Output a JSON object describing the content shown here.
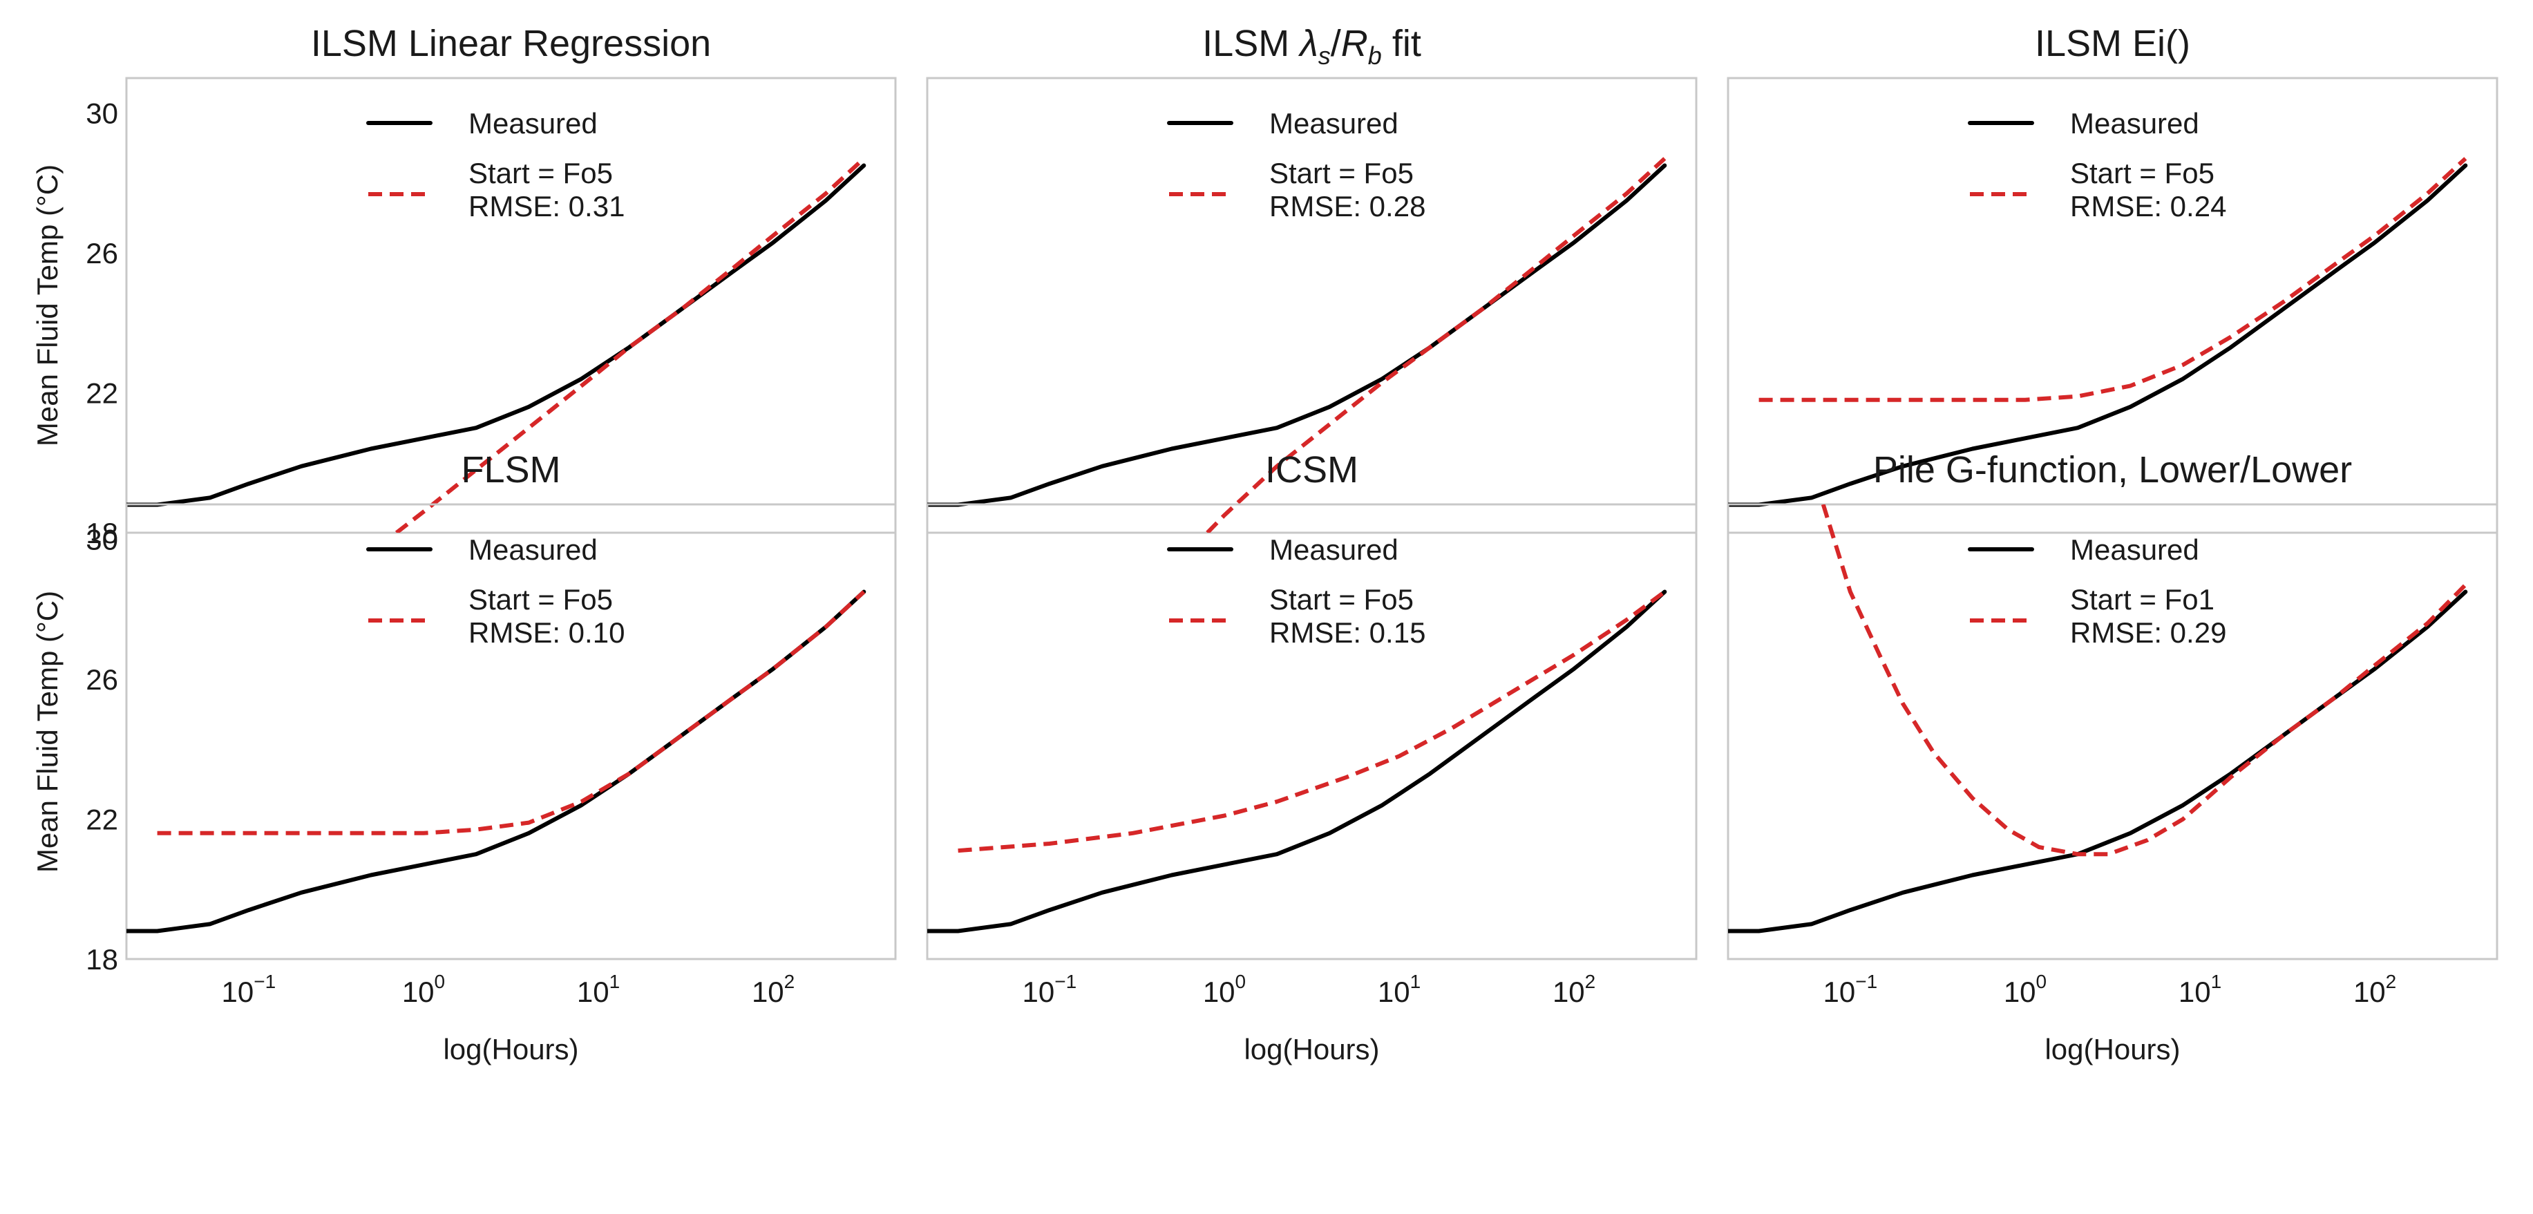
{
  "figure": {
    "xlabel": "log(Hours)",
    "ylabel": "Mean Fluid Temp (°C)",
    "legend_measured": "Measured"
  },
  "chart_data": [
    {
      "type": "line",
      "title": "ILSM Linear Regression",
      "xscale": "log",
      "xlim": [
        0.02,
        500
      ],
      "ylim": [
        18,
        31
      ],
      "yticks": [
        18,
        22,
        26,
        30
      ],
      "xticks": [
        0.1,
        1,
        10,
        100
      ],
      "xticklabels": [
        "10^-1",
        "10^0",
        "10^1",
        "10^2"
      ],
      "grid": false,
      "legend_position": "top",
      "series": [
        {
          "name": "Measured",
          "x": [
            0.02,
            0.03,
            0.06,
            0.1,
            0.2,
            0.5,
            1,
            2,
            4,
            8,
            15,
            30,
            60,
            100,
            200,
            330
          ],
          "y": [
            18.8,
            18.8,
            19.0,
            19.4,
            19.9,
            20.4,
            20.7,
            21.0,
            21.6,
            22.4,
            23.3,
            24.4,
            25.5,
            26.3,
            27.5,
            28.5
          ]
        },
        {
          "name": "Start = Fo5\nRMSE: 0.31",
          "x": [
            0.7,
            1,
            2,
            4,
            8,
            15,
            30,
            60,
            100,
            200,
            330
          ],
          "y": [
            18.0,
            18.6,
            19.8,
            21.0,
            22.2,
            23.3,
            24.4,
            25.6,
            26.5,
            27.7,
            28.7
          ]
        }
      ]
    },
    {
      "type": "line",
      "title": "ILSM λs/Rb fit",
      "xscale": "log",
      "xlim": [
        0.02,
        500
      ],
      "ylim": [
        18,
        31
      ],
      "yticks": [
        18,
        22,
        26,
        30
      ],
      "xticks": [
        0.1,
        1,
        10,
        100
      ],
      "xticklabels": [
        "10^-1",
        "10^0",
        "10^1",
        "10^2"
      ],
      "grid": false,
      "legend_position": "top",
      "series": [
        {
          "name": "Measured",
          "x": [
            0.02,
            0.03,
            0.06,
            0.1,
            0.2,
            0.5,
            1,
            2,
            4,
            8,
            15,
            30,
            60,
            100,
            200,
            330
          ],
          "y": [
            18.8,
            18.8,
            19.0,
            19.4,
            19.9,
            20.4,
            20.7,
            21.0,
            21.6,
            22.4,
            23.3,
            24.4,
            25.5,
            26.3,
            27.5,
            28.5
          ]
        },
        {
          "name": "Start = Fo5\nRMSE: 0.28",
          "x": [
            0.8,
            1,
            2,
            4,
            8,
            15,
            30,
            60,
            100,
            200,
            330
          ],
          "y": [
            18.0,
            18.5,
            19.9,
            21.1,
            22.3,
            23.3,
            24.4,
            25.6,
            26.5,
            27.7,
            28.7
          ]
        }
      ]
    },
    {
      "type": "line",
      "title": "ILSM Ei()",
      "xscale": "log",
      "xlim": [
        0.02,
        500
      ],
      "ylim": [
        18,
        31
      ],
      "yticks": [
        18,
        22,
        26,
        30
      ],
      "xticks": [
        0.1,
        1,
        10,
        100
      ],
      "xticklabels": [
        "10^-1",
        "10^0",
        "10^1",
        "10^2"
      ],
      "grid": false,
      "legend_position": "top",
      "series": [
        {
          "name": "Measured",
          "x": [
            0.02,
            0.03,
            0.06,
            0.1,
            0.2,
            0.5,
            1,
            2,
            4,
            8,
            15,
            30,
            60,
            100,
            200,
            330
          ],
          "y": [
            18.8,
            18.8,
            19.0,
            19.4,
            19.9,
            20.4,
            20.7,
            21.0,
            21.6,
            22.4,
            23.3,
            24.4,
            25.5,
            26.3,
            27.5,
            28.5
          ]
        },
        {
          "name": "Start = Fo5\nRMSE: 0.24",
          "x": [
            0.03,
            0.1,
            0.5,
            1,
            2,
            4,
            8,
            15,
            30,
            60,
            100,
            200,
            330
          ],
          "y": [
            21.8,
            21.8,
            21.8,
            21.8,
            21.9,
            22.2,
            22.8,
            23.6,
            24.6,
            25.7,
            26.5,
            27.7,
            28.7
          ]
        }
      ]
    },
    {
      "type": "line",
      "title": "FLSM",
      "xscale": "log",
      "xlim": [
        0.02,
        500
      ],
      "ylim": [
        18,
        31
      ],
      "yticks": [
        18,
        22,
        26,
        30
      ],
      "xticks": [
        0.1,
        1,
        10,
        100
      ],
      "xticklabels": [
        "10^-1",
        "10^0",
        "10^1",
        "10^2"
      ],
      "grid": false,
      "legend_position": "top",
      "series": [
        {
          "name": "Measured",
          "x": [
            0.02,
            0.03,
            0.06,
            0.1,
            0.2,
            0.5,
            1,
            2,
            4,
            8,
            15,
            30,
            60,
            100,
            200,
            330
          ],
          "y": [
            18.8,
            18.8,
            19.0,
            19.4,
            19.9,
            20.4,
            20.7,
            21.0,
            21.6,
            22.4,
            23.3,
            24.4,
            25.5,
            26.3,
            27.5,
            28.5
          ]
        },
        {
          "name": "Start = Fo5\nRMSE: 0.10",
          "x": [
            0.03,
            0.1,
            0.5,
            1,
            2,
            4,
            8,
            15,
            30,
            60,
            100,
            200,
            330
          ],
          "y": [
            21.6,
            21.6,
            21.6,
            21.6,
            21.7,
            21.9,
            22.5,
            23.3,
            24.4,
            25.5,
            26.3,
            27.5,
            28.5
          ]
        }
      ]
    },
    {
      "type": "line",
      "title": "ICSM",
      "xscale": "log",
      "xlim": [
        0.02,
        500
      ],
      "ylim": [
        18,
        31
      ],
      "yticks": [
        18,
        22,
        26,
        30
      ],
      "xticks": [
        0.1,
        1,
        10,
        100
      ],
      "xticklabels": [
        "10^-1",
        "10^0",
        "10^1",
        "10^2"
      ],
      "grid": false,
      "legend_position": "top",
      "series": [
        {
          "name": "Measured",
          "x": [
            0.02,
            0.03,
            0.06,
            0.1,
            0.2,
            0.5,
            1,
            2,
            4,
            8,
            15,
            30,
            60,
            100,
            200,
            330
          ],
          "y": [
            18.8,
            18.8,
            19.0,
            19.4,
            19.9,
            20.4,
            20.7,
            21.0,
            21.6,
            22.4,
            23.3,
            24.4,
            25.5,
            26.3,
            27.5,
            28.5
          ]
        },
        {
          "name": "Start = Fo5\nRMSE: 0.15",
          "x": [
            0.03,
            0.1,
            0.3,
            1,
            2,
            5,
            10,
            20,
            50,
            100,
            200,
            330
          ],
          "y": [
            21.1,
            21.3,
            21.6,
            22.1,
            22.5,
            23.2,
            23.8,
            24.6,
            25.8,
            26.7,
            27.7,
            28.5
          ]
        }
      ]
    },
    {
      "type": "line",
      "title": "Pile G-function, Lower/Lower",
      "xscale": "log",
      "xlim": [
        0.02,
        500
      ],
      "ylim": [
        18,
        31
      ],
      "yticks": [
        18,
        22,
        26,
        30
      ],
      "xticks": [
        0.1,
        1,
        10,
        100
      ],
      "xticklabels": [
        "10^-1",
        "10^0",
        "10^1",
        "10^2"
      ],
      "grid": false,
      "legend_position": "top",
      "series": [
        {
          "name": "Measured",
          "x": [
            0.02,
            0.03,
            0.06,
            0.1,
            0.2,
            0.5,
            1,
            2,
            4,
            8,
            15,
            30,
            60,
            100,
            200,
            330
          ],
          "y": [
            18.8,
            18.8,
            19.0,
            19.4,
            19.9,
            20.4,
            20.7,
            21.0,
            21.6,
            22.4,
            23.3,
            24.4,
            25.5,
            26.3,
            27.5,
            28.5
          ]
        },
        {
          "name": "Start = Fo1\nRMSE: 0.29",
          "x": [
            0.07,
            0.1,
            0.15,
            0.2,
            0.3,
            0.5,
            0.8,
            1.2,
            2,
            3,
            5,
            8,
            15,
            30,
            60,
            100,
            200,
            330
          ],
          "y": [
            31.0,
            28.5,
            26.6,
            25.3,
            23.9,
            22.6,
            21.7,
            21.2,
            21.0,
            21.0,
            21.4,
            22.0,
            23.2,
            24.4,
            25.5,
            26.4,
            27.6,
            28.7
          ]
        }
      ]
    }
  ]
}
